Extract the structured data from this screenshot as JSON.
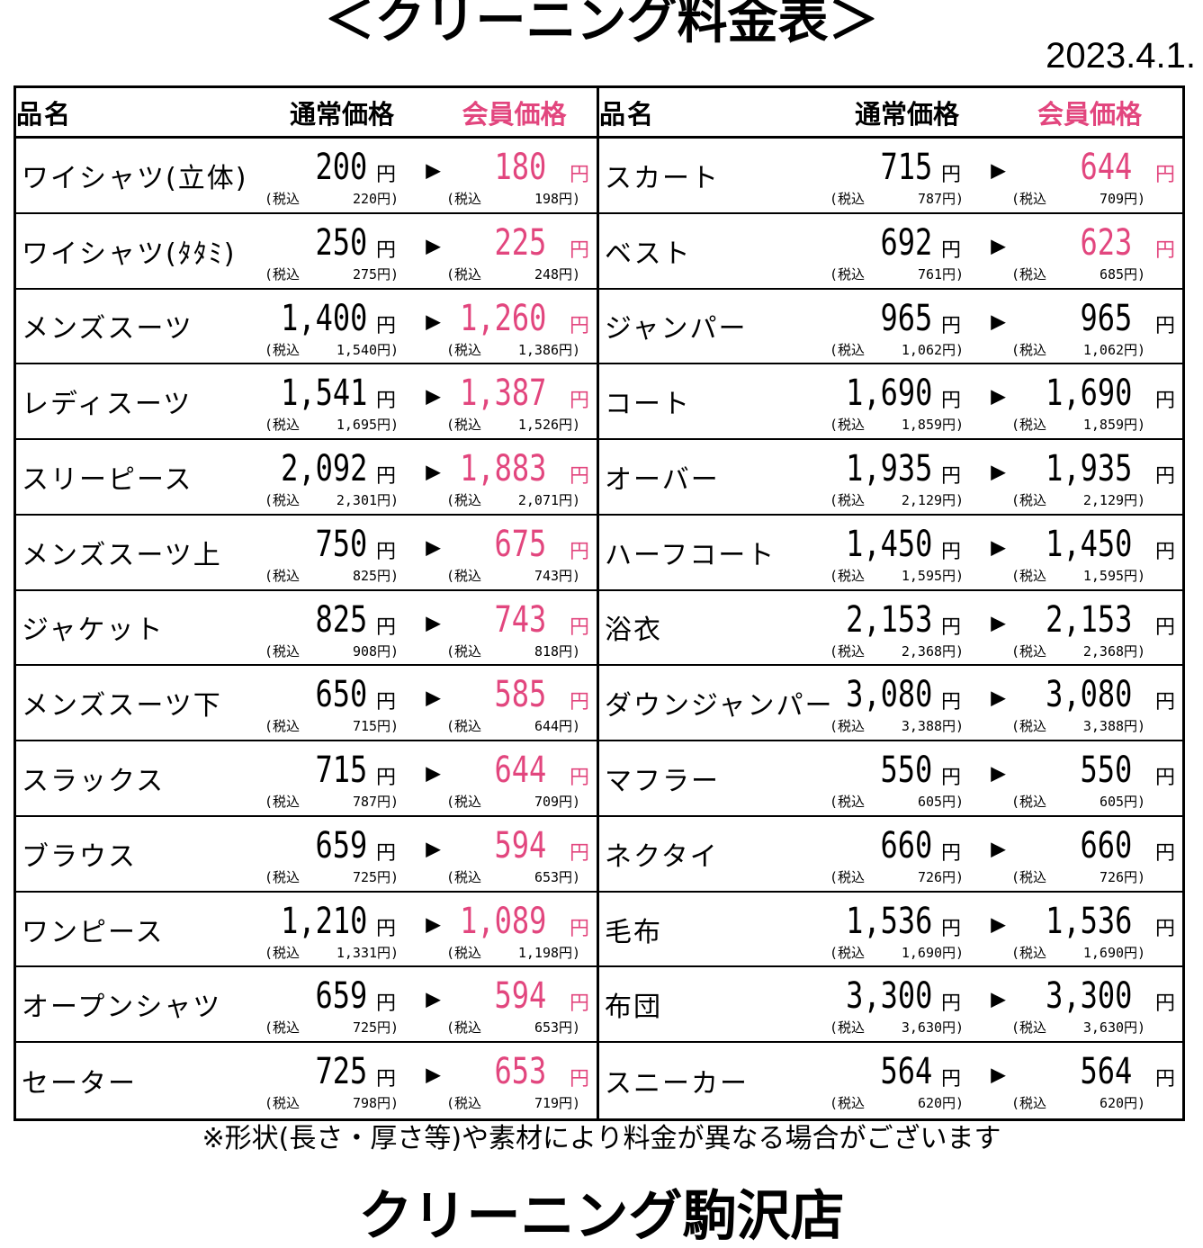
{
  "title": "＜クリーニング料金表＞",
  "date": "2023.4.1.",
  "header": {
    "name": "品名",
    "regular": "通常価格",
    "member": "会員価格"
  },
  "tax_prefix": "(税込",
  "tax_suffix": "円)",
  "yen": "円",
  "arrow": "▶",
  "colors": {
    "member_discount": "#e2467e",
    "text": "#000000"
  },
  "left_items": [
    {
      "name": "ワイシャツ(立体)",
      "regular": "200",
      "regular_tax": "220",
      "member": "180",
      "member_tax": "198",
      "discounted": true
    },
    {
      "name": "ワイシャツ(ﾀﾀﾐ)",
      "regular": "250",
      "regular_tax": "275",
      "member": "225",
      "member_tax": "248",
      "discounted": true
    },
    {
      "name": "メンズスーツ",
      "regular": "1,400",
      "regular_tax": "1,540",
      "member": "1,260",
      "member_tax": "1,386",
      "discounted": true
    },
    {
      "name": "レディスーツ",
      "regular": "1,541",
      "regular_tax": "1,695",
      "member": "1,387",
      "member_tax": "1,526",
      "discounted": true
    },
    {
      "name": "スリーピース",
      "regular": "2,092",
      "regular_tax": "2,301",
      "member": "1,883",
      "member_tax": "2,071",
      "discounted": true
    },
    {
      "name": "メンズスーツ上",
      "regular": "750",
      "regular_tax": "825",
      "member": "675",
      "member_tax": "743",
      "discounted": true
    },
    {
      "name": "ジャケット",
      "regular": "825",
      "regular_tax": "908",
      "member": "743",
      "member_tax": "818",
      "discounted": true
    },
    {
      "name": "メンズスーツ下",
      "regular": "650",
      "regular_tax": "715",
      "member": "585",
      "member_tax": "644",
      "discounted": true
    },
    {
      "name": "スラックス",
      "regular": "715",
      "regular_tax": "787",
      "member": "644",
      "member_tax": "709",
      "discounted": true
    },
    {
      "name": "ブラウス",
      "regular": "659",
      "regular_tax": "725",
      "member": "594",
      "member_tax": "653",
      "discounted": true
    },
    {
      "name": "ワンピース",
      "regular": "1,210",
      "regular_tax": "1,331",
      "member": "1,089",
      "member_tax": "1,198",
      "discounted": true
    },
    {
      "name": "オープンシャツ",
      "regular": "659",
      "regular_tax": "725",
      "member": "594",
      "member_tax": "653",
      "discounted": true
    },
    {
      "name": "セーター",
      "regular": "725",
      "regular_tax": "798",
      "member": "653",
      "member_tax": "719",
      "discounted": true
    }
  ],
  "right_items": [
    {
      "name": "スカート",
      "regular": "715",
      "regular_tax": "787",
      "member": "644",
      "member_tax": "709",
      "discounted": true
    },
    {
      "name": "ベスト",
      "regular": "692",
      "regular_tax": "761",
      "member": "623",
      "member_tax": "685",
      "discounted": true
    },
    {
      "name": "ジャンパー",
      "regular": "965",
      "regular_tax": "1,062",
      "member": "965",
      "member_tax": "1,062",
      "discounted": false
    },
    {
      "name": "コート",
      "regular": "1,690",
      "regular_tax": "1,859",
      "member": "1,690",
      "member_tax": "1,859",
      "discounted": false
    },
    {
      "name": "オーバー",
      "regular": "1,935",
      "regular_tax": "2,129",
      "member": "1,935",
      "member_tax": "2,129",
      "discounted": false
    },
    {
      "name": "ハーフコート",
      "regular": "1,450",
      "regular_tax": "1,595",
      "member": "1,450",
      "member_tax": "1,595",
      "discounted": false
    },
    {
      "name": "浴衣",
      "regular": "2,153",
      "regular_tax": "2,368",
      "member": "2,153",
      "member_tax": "2,368",
      "discounted": false
    },
    {
      "name": "ダウンジャンパー",
      "regular": "3,080",
      "regular_tax": "3,388",
      "member": "3,080",
      "member_tax": "3,388",
      "discounted": false
    },
    {
      "name": "マフラー",
      "regular": "550",
      "regular_tax": "605",
      "member": "550",
      "member_tax": "605",
      "discounted": false
    },
    {
      "name": "ネクタイ",
      "regular": "660",
      "regular_tax": "726",
      "member": "660",
      "member_tax": "726",
      "discounted": false
    },
    {
      "name": "毛布",
      "regular": "1,536",
      "regular_tax": "1,690",
      "member": "1,536",
      "member_tax": "1,690",
      "discounted": false
    },
    {
      "name": "布団",
      "regular": "3,300",
      "regular_tax": "3,630",
      "member": "3,300",
      "member_tax": "3,630",
      "discounted": false
    },
    {
      "name": "スニーカー",
      "regular": "564",
      "regular_tax": "620",
      "member": "564",
      "member_tax": "620",
      "discounted": false
    }
  ],
  "note": "※形状(長さ・厚さ等)や素材により料金が異なる場合がございます",
  "store_name": "クリーニング駒沢店"
}
